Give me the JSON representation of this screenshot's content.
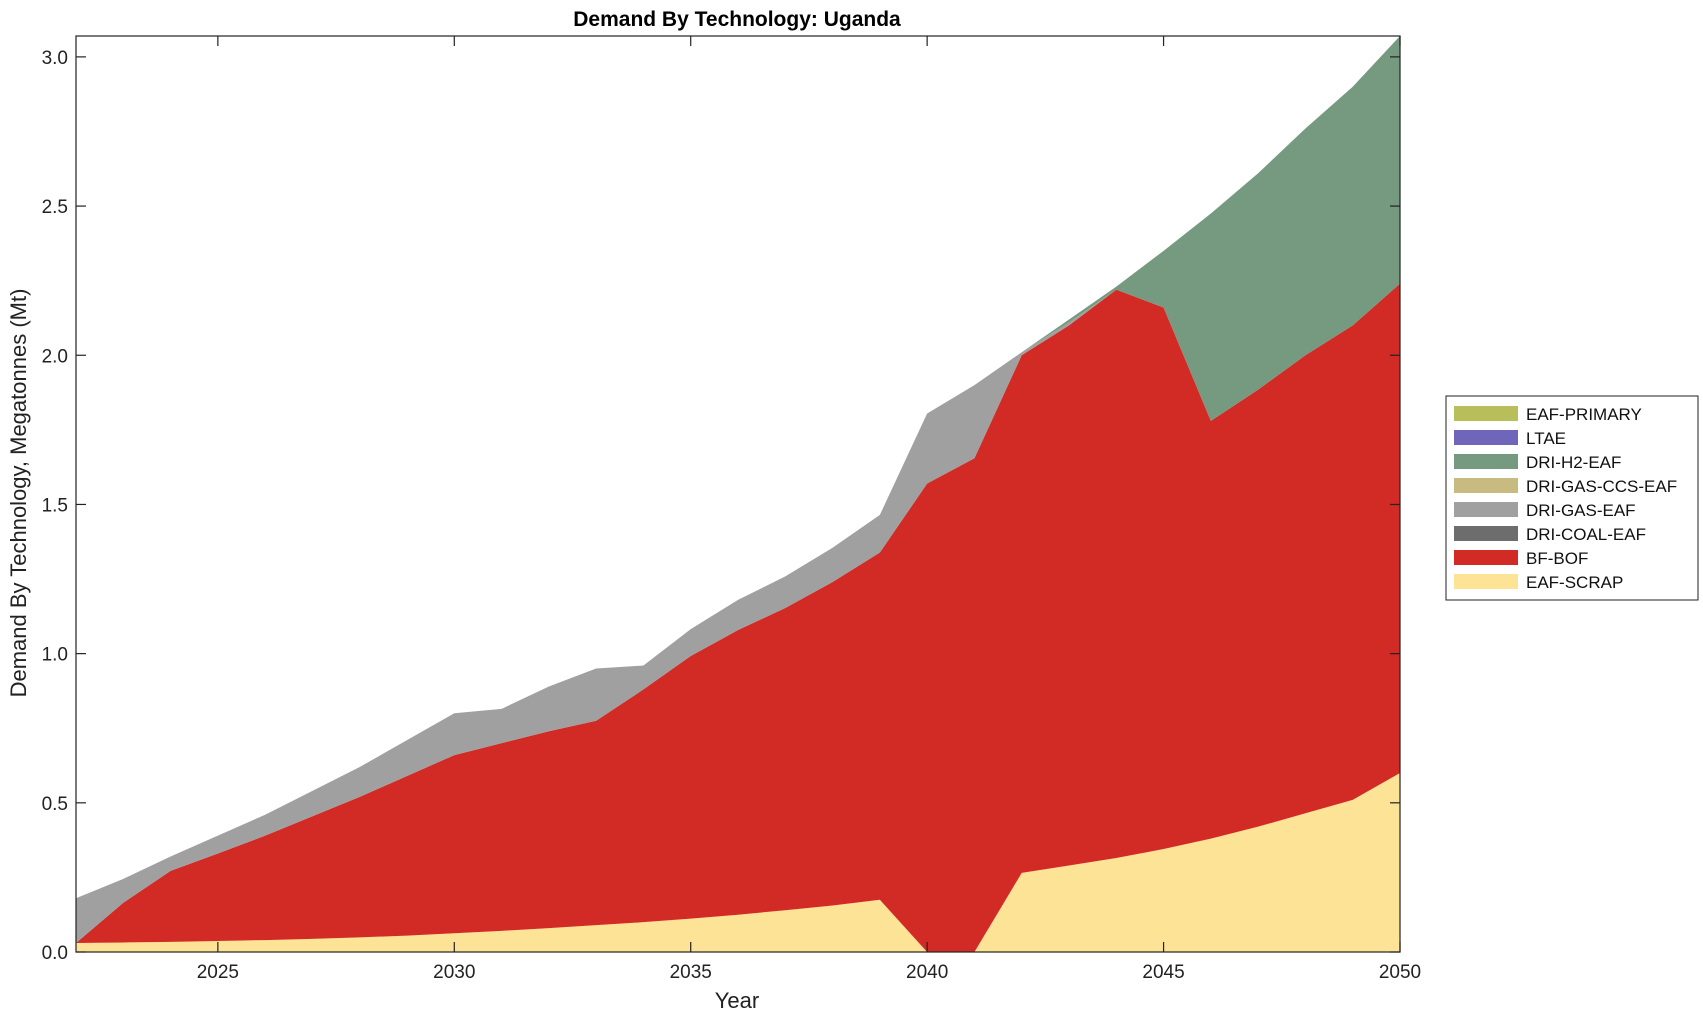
{
  "chart_data": {
    "type": "area",
    "title": "Demand By Technology: Uganda",
    "xlabel": "Year",
    "ylabel": "Demand By Technology, Megatonnes (Mt)",
    "xlim": [
      2022,
      2050
    ],
    "ylim": [
      0,
      3.07
    ],
    "xticks": [
      2025,
      2030,
      2035,
      2040,
      2045,
      2050
    ],
    "yticks": [
      "0.0",
      "0.5",
      "1.0",
      "1.5",
      "2.0",
      "2.5",
      "3.0"
    ],
    "stacked": true,
    "legend_position": "right",
    "x": [
      2022,
      2023,
      2024,
      2025,
      2026,
      2027,
      2028,
      2029,
      2030,
      2031,
      2032,
      2033,
      2034,
      2035,
      2036,
      2037,
      2038,
      2039,
      2040,
      2041,
      2042,
      2043,
      2044,
      2045,
      2046,
      2047,
      2048,
      2049,
      2050
    ],
    "series": [
      {
        "name": "EAF-SCRAP",
        "color": "#FDE395",
        "values": [
          0.03,
          0.032,
          0.034,
          0.037,
          0.04,
          0.044,
          0.049,
          0.055,
          0.063,
          0.071,
          0.08,
          0.09,
          0.1,
          0.112,
          0.125,
          0.14,
          0.156,
          0.175,
          0.0,
          0.0,
          0.265,
          0.29,
          0.315,
          0.345,
          0.38,
          0.42,
          0.465,
          0.51,
          0.6
        ]
      },
      {
        "name": "BF-BOF",
        "color": "#D22B25",
        "values": [
          0.0,
          0.133,
          0.238,
          0.293,
          0.35,
          0.411,
          0.471,
          0.535,
          0.597,
          0.629,
          0.66,
          0.685,
          0.78,
          0.88,
          0.954,
          1.013,
          1.084,
          1.164,
          1.57,
          1.655,
          1.735,
          1.81,
          1.905,
          1.815,
          1.4,
          1.465,
          1.535,
          1.59,
          1.64
        ]
      },
      {
        "name": "DRI-COAL-EAF",
        "color": "#6D6D6D",
        "values": [
          0,
          0,
          0,
          0,
          0,
          0,
          0,
          0,
          0,
          0,
          0,
          0,
          0,
          0,
          0,
          0,
          0,
          0,
          0,
          0,
          0,
          0,
          0,
          0,
          0,
          0,
          0,
          0,
          0
        ]
      },
      {
        "name": "DRI-GAS-EAF",
        "color": "#A0A0A0",
        "values": [
          0.15,
          0.08,
          0.048,
          0.06,
          0.07,
          0.085,
          0.1,
          0.12,
          0.14,
          0.115,
          0.15,
          0.175,
          0.08,
          0.09,
          0.101,
          0.106,
          0.115,
          0.126,
          0.235,
          0.245,
          0.01,
          0.01,
          0.0,
          0.0,
          0.0,
          0.0,
          0.0,
          0.0,
          0.0
        ]
      },
      {
        "name": "DRI-GAS-CCS-EAF",
        "color": "#C8BB82",
        "values": [
          0,
          0,
          0,
          0,
          0,
          0,
          0,
          0,
          0,
          0,
          0,
          0,
          0,
          0,
          0,
          0,
          0,
          0,
          0,
          0,
          0,
          0,
          0,
          0,
          0,
          0,
          0,
          0,
          0
        ]
      },
      {
        "name": "DRI-H2-EAF",
        "color": "#759A7F",
        "values": [
          0,
          0,
          0,
          0,
          0,
          0,
          0,
          0,
          0,
          0,
          0,
          0,
          0,
          0,
          0,
          0,
          0,
          0,
          0,
          0,
          0,
          0.01,
          0.01,
          0.19,
          0.695,
          0.725,
          0.76,
          0.8,
          0.83
        ]
      },
      {
        "name": "LTAE",
        "color": "#6F66BB",
        "values": [
          0,
          0,
          0,
          0,
          0,
          0,
          0,
          0,
          0,
          0,
          0,
          0,
          0,
          0,
          0,
          0,
          0,
          0,
          0,
          0,
          0,
          0,
          0,
          0,
          0,
          0,
          0,
          0,
          0
        ]
      },
      {
        "name": "EAF-PRIMARY",
        "color": "#B7BE5A",
        "values": [
          0,
          0,
          0,
          0,
          0,
          0,
          0,
          0,
          0,
          0,
          0,
          0,
          0,
          0,
          0,
          0,
          0,
          0,
          0,
          0,
          0,
          0,
          0,
          0,
          0,
          0,
          0,
          0,
          0
        ]
      }
    ]
  }
}
